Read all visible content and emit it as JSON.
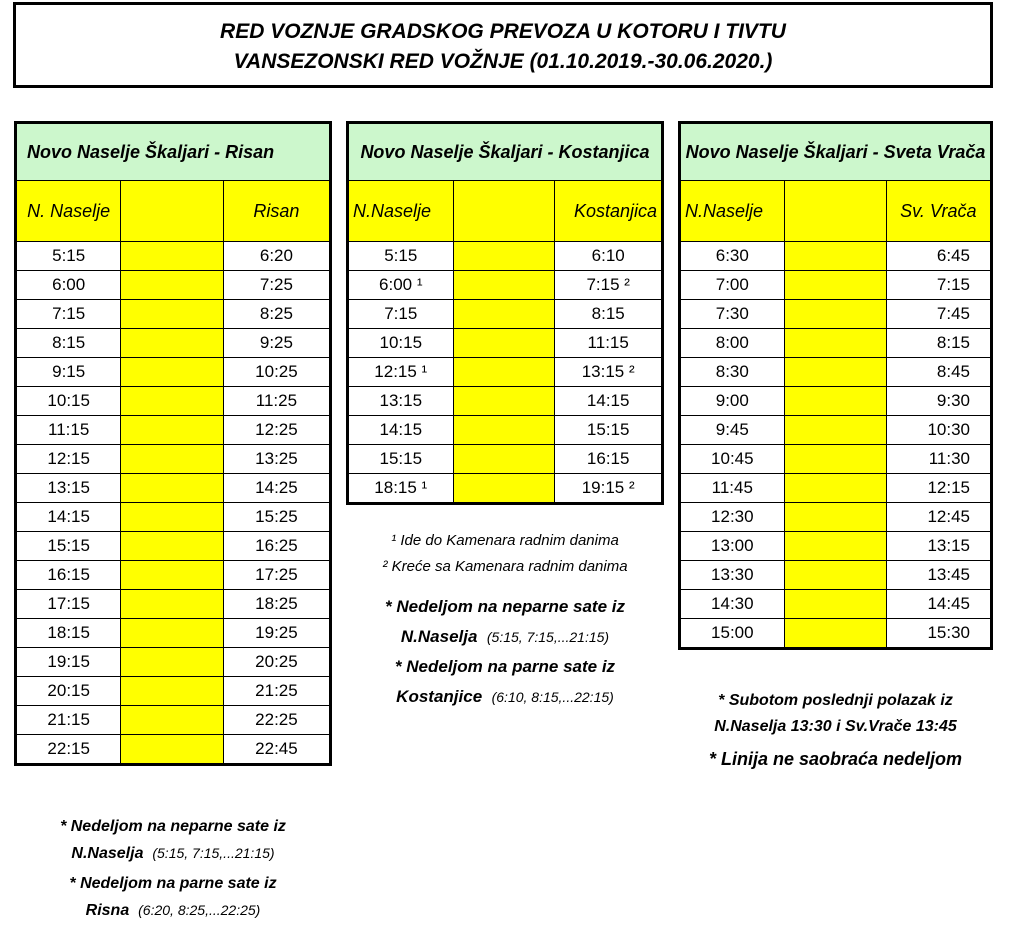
{
  "title": {
    "line1": "RED VOZNJE GRADSKOG PREVOZA U KOTORU I TIVTU",
    "line2": "VANSEZONSKI RED VOŽNJE (01.10.2019.-30.06.2020.)"
  },
  "risan": {
    "header": "Novo Naselje Škaljari - Risan",
    "col_from": "N. Naselje",
    "col_to": "Risan",
    "rows": [
      [
        "5:15",
        "6:20"
      ],
      [
        "6:00",
        "7:25"
      ],
      [
        "7:15",
        "8:25"
      ],
      [
        "8:15",
        "9:25"
      ],
      [
        "9:15",
        "10:25"
      ],
      [
        "10:15",
        "11:25"
      ],
      [
        "11:15",
        "12:25"
      ],
      [
        "12:15",
        "13:25"
      ],
      [
        "13:15",
        "14:25"
      ],
      [
        "14:15",
        "15:25"
      ],
      [
        "15:15",
        "16:25"
      ],
      [
        "16:15",
        "17:25"
      ],
      [
        "17:15",
        "18:25"
      ],
      [
        "18:15",
        "19:25"
      ],
      [
        "19:15",
        "20:25"
      ],
      [
        "20:15",
        "21:25"
      ],
      [
        "21:15",
        "22:25"
      ],
      [
        "22:15",
        "22:45"
      ]
    ],
    "notes": [
      {
        "bold": "* Nedeljom na neparne sate iz",
        "bold2": "N.Naselja",
        "small": "(5:15, 7:15,...21:15)"
      },
      {
        "bold": "* Nedeljom na parne sate iz",
        "bold2": "Risna",
        "small": "(6:20, 8:25,...22:25)"
      }
    ]
  },
  "kostanjica": {
    "header": "Novo Naselje Škaljari - Kostanjica",
    "col_from": "N.Naselje",
    "col_to": "Kostanjica",
    "rows": [
      [
        "5:15",
        "6:10"
      ],
      [
        "6:00 ¹",
        "7:15 ²"
      ],
      [
        "7:15",
        "8:15"
      ],
      [
        "10:15",
        "11:15"
      ],
      [
        "12:15 ¹",
        "13:15 ²"
      ],
      [
        "13:15",
        "14:15"
      ],
      [
        "14:15",
        "15:15"
      ],
      [
        "15:15",
        "16:15"
      ],
      [
        "18:15 ¹",
        "19:15 ²"
      ]
    ],
    "footnote1": "¹ Ide do Kamenara radnim danima",
    "footnote2": "² Kreće sa Kamenara radnim danima",
    "notes": [
      {
        "bold": "* Nedeljom na neparne sate iz",
        "bold2": "N.Naselja",
        "small": "(5:15, 7:15,...21:15)"
      },
      {
        "bold": "* Nedeljom na parne sate iz",
        "bold2": "Kostanjice",
        "small": "(6:10, 8:15,...22:15)"
      }
    ]
  },
  "vraca": {
    "header": "Novo Naselje Škaljari - Sveta Vrača",
    "col_from": "N.Naselje",
    "col_to": "Sv. Vrača",
    "rows": [
      [
        "6:30",
        "6:45"
      ],
      [
        "7:00",
        "7:15"
      ],
      [
        "7:30",
        "7:45"
      ],
      [
        "8:00",
        "8:15"
      ],
      [
        "8:30",
        "8:45"
      ],
      [
        "9:00",
        "9:30"
      ],
      [
        "9:45",
        "10:30"
      ],
      [
        "10:45",
        "11:30"
      ],
      [
        "11:45",
        "12:15"
      ],
      [
        "12:30",
        "12:45"
      ],
      [
        "13:00",
        "13:15"
      ],
      [
        "13:30",
        "13:45"
      ],
      [
        "14:30",
        "14:45"
      ],
      [
        "15:00",
        "15:30"
      ]
    ],
    "note1": "* Subotom poslednji polazak iz",
    "note2": "N.Naselja 13:30 i Sv.Vrače 13:45",
    "note3": "* Linija ne saobraća nedeljom"
  }
}
